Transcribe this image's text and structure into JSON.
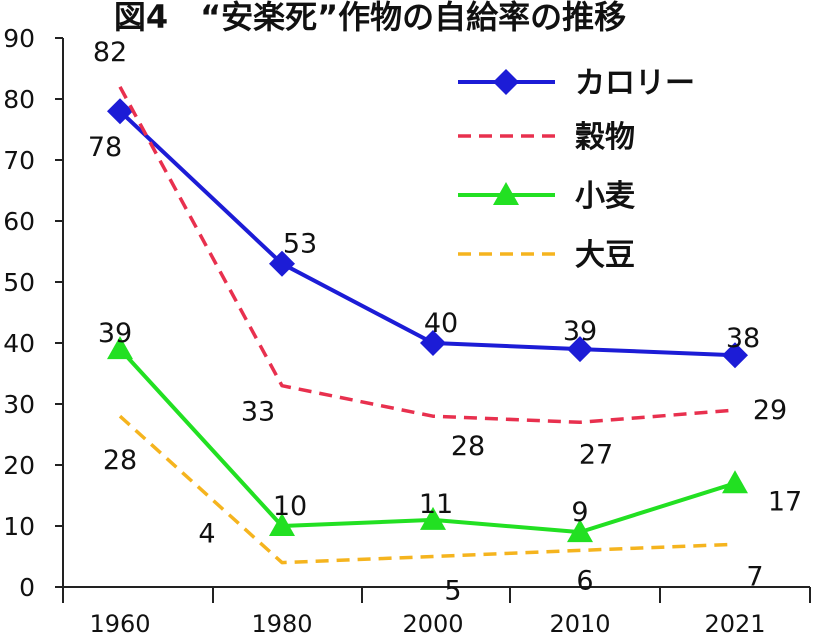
{
  "chart_data": {
    "type": "line",
    "title": "図4　“安楽死”作物の自給率の推移",
    "xlabel": "",
    "ylabel": "",
    "categories": [
      "1960",
      "1980",
      "2000",
      "2010",
      "2021"
    ],
    "ylim": [
      0,
      90
    ],
    "yticks": [
      "0",
      "10",
      "20",
      "30",
      "40",
      "50",
      "60",
      "70",
      "80",
      "90"
    ],
    "grid": false,
    "legend_position": "top-right",
    "series": [
      {
        "name": "カロリー",
        "values": [
          78,
          53,
          40,
          39,
          38
        ],
        "labels": [
          "78",
          "53",
          "40",
          "39",
          "38"
        ],
        "color": "#1c1cd6",
        "dash": "solid",
        "marker": "diamond"
      },
      {
        "name": "穀物",
        "values": [
          82,
          33,
          28,
          27,
          29
        ],
        "labels": [
          "82",
          "33",
          "28",
          "27",
          "29"
        ],
        "color": "#e8304e",
        "dash": "dashed",
        "marker": "none"
      },
      {
        "name": "小麦",
        "values": [
          39,
          10,
          11,
          9,
          17
        ],
        "labels": [
          "39",
          "10",
          "11",
          "9",
          "17"
        ],
        "color": "#22e022",
        "dash": "solid",
        "marker": "triangle"
      },
      {
        "name": "大豆",
        "values": [
          28,
          4,
          5,
          6,
          7
        ],
        "labels": [
          "28",
          "4",
          "5",
          "6",
          "7"
        ],
        "color": "#f5b41e",
        "dash": "dashed",
        "marker": "none"
      }
    ]
  }
}
